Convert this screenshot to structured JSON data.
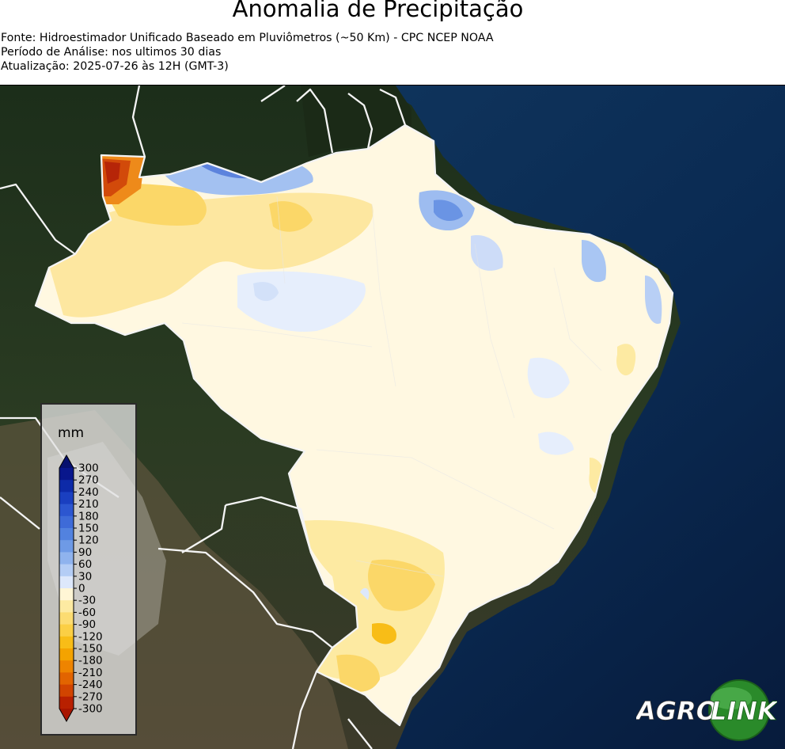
{
  "title": "Anomalia de Precipitação",
  "meta": {
    "source": "Fonte: Hidroestimador Unificado Baseado em Pluviômetros (~50 Km) - CPC NCEP NOAA",
    "period": "Período de Análise: nos ultimos 30 dias",
    "updated": "Atualização: 2025-07-26 às 12H (GMT-3)"
  },
  "legend": {
    "unit": "mm",
    "ticks": [
      "300",
      "270",
      "240",
      "210",
      "180",
      "150",
      "120",
      "90",
      "60",
      "30",
      "0",
      "-30",
      "-60",
      "-90",
      "-120",
      "-150",
      "-180",
      "-210",
      "-240",
      "-270",
      "-300"
    ],
    "colors": [
      "#08168c",
      "#0d2aa8",
      "#1a3fc0",
      "#2c56d0",
      "#3e6bd8",
      "#5282df",
      "#6e9ae6",
      "#8fb3ee",
      "#b4cdf5",
      "#dde8fb",
      "#fff6d5",
      "#fdeaa2",
      "#fcdc72",
      "#fbcf45",
      "#f8bd17",
      "#f4a300",
      "#ee8400",
      "#e26400",
      "#d14400",
      "#b82000"
    ]
  },
  "logo": {
    "text_agro": "AGRO",
    "text_link": "LINK"
  },
  "colors": {
    "land_neutral": "#fff8e1",
    "ocean": "#0b2b55",
    "border": "#f4f4f4"
  }
}
